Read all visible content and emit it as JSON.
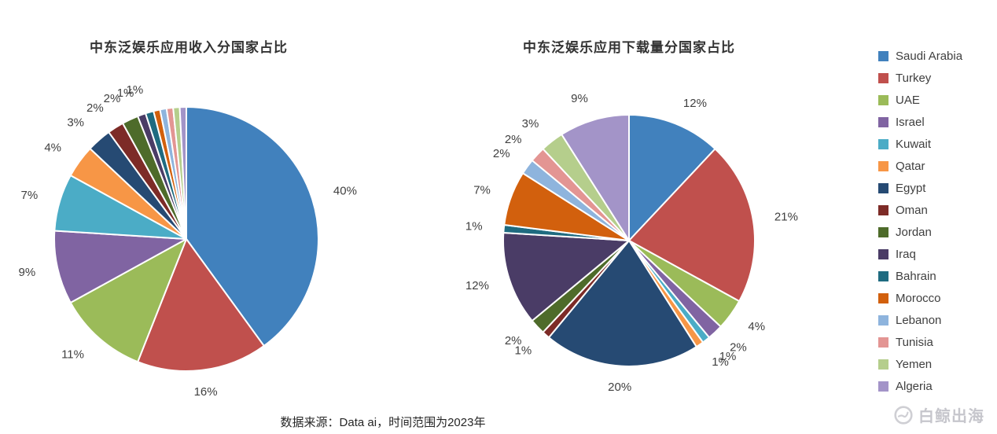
{
  "chart_data": [
    {
      "type": "pie",
      "title": "中东泛娱乐应用收入分国家占比",
      "categories": [
        "Saudi Arabia",
        "Turkey",
        "UAE",
        "Israel",
        "Kuwait",
        "Qatar",
        "Egypt",
        "Oman",
        "Jordan",
        "Iraq",
        "Bahrain",
        "Morocco",
        "Lebanon",
        "Tunisia",
        "Yemen",
        "Algeria"
      ],
      "values": [
        40,
        16,
        11,
        9,
        7,
        4,
        3,
        2,
        2,
        1,
        1,
        0.8,
        0.8,
        0.8,
        0.8,
        0.8
      ],
      "labels": [
        "40%",
        "16%",
        "11%",
        "9%",
        "7%",
        "4%",
        "3%",
        "2%",
        "2%",
        "1%",
        "1%",
        "",
        "",
        "",
        "",
        ""
      ],
      "unit": "%",
      "legend_position": "right",
      "grid": false
    },
    {
      "type": "pie",
      "title": "中东泛娱乐应用下载量分国家占比",
      "categories": [
        "Saudi Arabia",
        "Turkey",
        "UAE",
        "Israel",
        "Kuwait",
        "Qatar",
        "Egypt",
        "Oman",
        "Jordan",
        "Iraq",
        "Bahrain",
        "Morocco",
        "Lebanon",
        "Tunisia",
        "Yemen",
        "Algeria"
      ],
      "values": [
        12,
        21,
        4,
        2,
        1,
        1,
        20,
        1,
        2,
        12,
        1,
        7,
        2,
        2,
        3,
        9
      ],
      "labels": [
        "12%",
        "21%",
        "4%",
        "2%",
        "1%",
        "1%",
        "20%",
        "1%",
        "2%",
        "12%",
        "1%",
        "7%",
        "2%",
        "2%",
        "3%",
        "9%"
      ],
      "unit": "%",
      "legend_position": "right",
      "grid": false
    }
  ],
  "palette": [
    "#4181BD",
    "#C0504D",
    "#9BBB59",
    "#8064A2",
    "#4BACC6",
    "#F79646",
    "#264A73",
    "#7D2B27",
    "#4E6B2A",
    "#4A3C66",
    "#1F6B80",
    "#D2600D",
    "#8EB4DD",
    "#E39593",
    "#B5CE8C",
    "#A394C8"
  ],
  "legend": {
    "position": "right",
    "items": [
      {
        "label": "Saudi Arabia",
        "color": "#4181BD"
      },
      {
        "label": "Turkey",
        "color": "#C0504D"
      },
      {
        "label": "UAE",
        "color": "#9BBB59"
      },
      {
        "label": "Israel",
        "color": "#8064A2"
      },
      {
        "label": "Kuwait",
        "color": "#4BACC6"
      },
      {
        "label": "Qatar",
        "color": "#F79646"
      },
      {
        "label": "Egypt",
        "color": "#264A73"
      },
      {
        "label": "Oman",
        "color": "#7D2B27"
      },
      {
        "label": "Jordan",
        "color": "#4E6B2A"
      },
      {
        "label": "Iraq",
        "color": "#4A3C66"
      },
      {
        "label": "Bahrain",
        "color": "#1F6B80"
      },
      {
        "label": "Morocco",
        "color": "#D2600D"
      },
      {
        "label": "Lebanon",
        "color": "#8EB4DD"
      },
      {
        "label": "Tunisia",
        "color": "#E39593"
      },
      {
        "label": "Yemen",
        "color": "#B5CE8C"
      },
      {
        "label": "Algeria",
        "color": "#A394C8"
      }
    ]
  },
  "caption": "数据来源：Data ai，时间范围为2023年",
  "watermark": {
    "text": "白鲸出海"
  }
}
